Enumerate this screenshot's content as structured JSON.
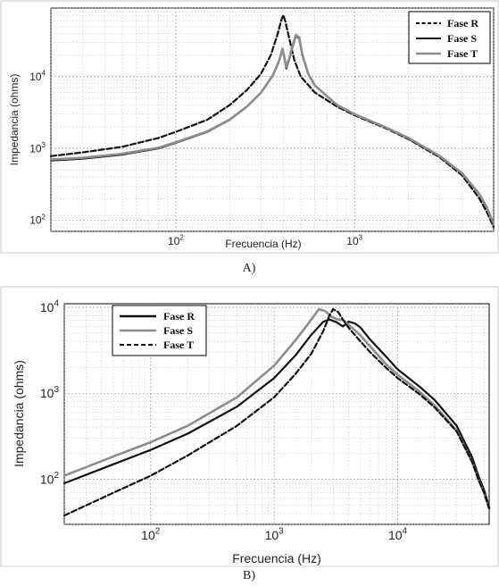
{
  "colors": {
    "black": "#111111",
    "gray": "#8c8c8c"
  },
  "chart_data": [
    {
      "type": "line",
      "caption": "A)",
      "xlabel": "Frecuencia (Hz)",
      "ylabel": "Impedancia (ohms)",
      "xscale": "log",
      "yscale": "log",
      "xlim": [
        20,
        6000
      ],
      "ylim": [
        70,
        90000
      ],
      "grid": true,
      "legend_position": "top-right",
      "x_ticks": [
        100,
        1000
      ],
      "x_tick_labels": [
        {
          "base": "10",
          "exp": "2"
        },
        {
          "base": "10",
          "exp": "3"
        }
      ],
      "y_ticks": [
        100,
        1000,
        10000
      ],
      "y_tick_labels": [
        {
          "base": "10",
          "exp": "2"
        },
        {
          "base": "10",
          "exp": "3"
        },
        {
          "base": "10",
          "exp": "4"
        }
      ],
      "series": [
        {
          "name": "Fase R",
          "style": "dashed",
          "color": "#111111",
          "x": [
            20,
            30,
            50,
            80,
            100,
            150,
            200,
            250,
            300,
            340,
            370,
            390,
            400,
            410,
            430,
            460,
            500,
            600,
            800,
            1000,
            1500,
            2000,
            3000,
            4000,
            5000,
            5500,
            6000
          ],
          "y": [
            780,
            880,
            1050,
            1400,
            1700,
            2500,
            4000,
            6500,
            11000,
            20000,
            38000,
            62000,
            72000,
            58000,
            35000,
            17000,
            10000,
            6000,
            3800,
            2900,
            1900,
            1350,
            750,
            420,
            200,
            130,
            80
          ]
        },
        {
          "name": "Fase S",
          "style": "solid",
          "color": "#111111",
          "x": [
            20,
            30,
            50,
            80,
            100,
            150,
            200,
            250,
            300,
            350,
            380,
            395,
            405,
            415,
            430,
            450,
            470,
            490,
            510,
            550,
            600,
            800,
            1000,
            1500,
            2000,
            3000,
            4000,
            5000,
            5500,
            6000
          ],
          "y": [
            680,
            720,
            820,
            1000,
            1200,
            1700,
            2500,
            3800,
            6000,
            10500,
            17000,
            24000,
            18000,
            13000,
            17000,
            26000,
            37000,
            34000,
            20000,
            11000,
            7500,
            4000,
            3000,
            1950,
            1400,
            780,
            450,
            230,
            150,
            90
          ]
        },
        {
          "name": "Fase T",
          "style": "solid",
          "color": "#8c8c8c",
          "x": [
            20,
            30,
            50,
            80,
            100,
            150,
            200,
            250,
            300,
            350,
            380,
            395,
            405,
            415,
            430,
            450,
            470,
            490,
            510,
            550,
            600,
            800,
            1000,
            1500,
            2000,
            3000,
            4000,
            5000,
            5500,
            6000
          ],
          "y": [
            700,
            740,
            840,
            1020,
            1220,
            1720,
            2520,
            3820,
            6020,
            10500,
            17000,
            24500,
            18500,
            13500,
            17500,
            27000,
            38000,
            35000,
            20500,
            11000,
            7500,
            4000,
            3000,
            1950,
            1400,
            780,
            450,
            230,
            150,
            90
          ]
        }
      ]
    },
    {
      "type": "line",
      "caption": "B)",
      "xlabel": "Frecuencia (Hz)",
      "ylabel": "Impedancia (ohms)",
      "xscale": "log",
      "yscale": "log",
      "xlim": [
        20,
        55000
      ],
      "ylim": [
        30,
        11000
      ],
      "grid": true,
      "legend_position": "top-left",
      "x_ticks": [
        100,
        1000,
        10000
      ],
      "x_tick_labels": [
        {
          "base": "10",
          "exp": "2"
        },
        {
          "base": "10",
          "exp": "3"
        },
        {
          "base": "10",
          "exp": "4"
        }
      ],
      "y_ticks": [
        100,
        1000,
        10000
      ],
      "y_tick_labels": [
        {
          "base": "10",
          "exp": "2"
        },
        {
          "base": "10",
          "exp": "3"
        },
        {
          "base": "10",
          "exp": "4"
        }
      ],
      "series": [
        {
          "name": "Fase R",
          "style": "solid",
          "color": "#111111",
          "x": [
            20,
            50,
            100,
            200,
            500,
            1000,
            1500,
            2000,
            2500,
            2800,
            3200,
            3600,
            4000,
            4500,
            5000,
            6000,
            8000,
            10000,
            15000,
            20000,
            30000,
            40000,
            45000,
            50000,
            55000
          ],
          "y": [
            90,
            150,
            220,
            340,
            700,
            1500,
            2800,
            4800,
            6800,
            7200,
            6700,
            6000,
            6800,
            6500,
            5800,
            4200,
            2700,
            1900,
            1200,
            830,
            420,
            180,
            110,
            75,
            48
          ]
        },
        {
          "name": "Fase S",
          "style": "solid",
          "color": "#8c8c8c",
          "x": [
            20,
            50,
            100,
            200,
            500,
            1000,
            1500,
            2000,
            2300,
            2600,
            2900,
            3200,
            3600,
            4000,
            5000,
            6000,
            8000,
            10000,
            15000,
            20000,
            30000,
            40000,
            45000,
            50000,
            55000
          ],
          "y": [
            110,
            185,
            270,
            420,
            900,
            2100,
            4200,
            7200,
            9500,
            9000,
            7800,
            7300,
            7100,
            6300,
            4700,
            3500,
            2200,
            1650,
            1050,
            720,
            370,
            160,
            100,
            70,
            46
          ]
        },
        {
          "name": "Fase T",
          "style": "dashed",
          "color": "#111111",
          "x": [
            20,
            50,
            100,
            200,
            500,
            1000,
            1500,
            2000,
            2500,
            2800,
            3000,
            3300,
            3600,
            4000,
            5000,
            6000,
            8000,
            10000,
            15000,
            20000,
            30000,
            40000,
            45000,
            50000,
            55000
          ],
          "y": [
            38,
            70,
            110,
            190,
            420,
            900,
            1700,
            2900,
            5300,
            8000,
            9500,
            8800,
            7200,
            5800,
            4000,
            3000,
            2000,
            1500,
            980,
            680,
            360,
            160,
            100,
            70,
            46
          ]
        }
      ]
    }
  ]
}
